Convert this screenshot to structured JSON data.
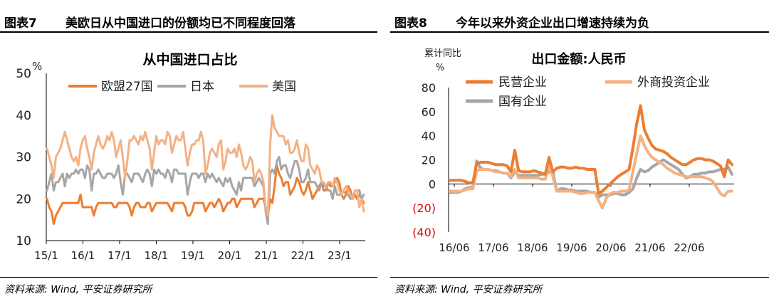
{
  "figures": [
    {
      "number": "图表7",
      "title": "美欧日从中国进口的份额均已不同程度回落",
      "source": "资料来源: Wind, 平安证券研究所"
    },
    {
      "number": "图表8",
      "title": "今年以来外资企业出口增速持续为负",
      "source": "资料来源: Wind, 平安证券研究所"
    }
  ],
  "chart_data": [
    {
      "type": "line",
      "title": "从中国进口占比",
      "ylabel": "%",
      "ylim": [
        10,
        50
      ],
      "yticks": [
        "10",
        "20",
        "30",
        "40",
        "50"
      ],
      "x_tick_labels": [
        "15/1",
        "16/1",
        "17/1",
        "18/1",
        "19/1",
        "20/1",
        "21/1",
        "22/1",
        "23/1"
      ],
      "grid": false,
      "legend": "top",
      "colors": {
        "欧盟27国": "#ED7D31",
        "日本": "#A6A6A6",
        "美国": "#F4B183"
      },
      "series": [
        {
          "name": "欧盟27国",
          "values": [
            20,
            18,
            17,
            14,
            16,
            17,
            18,
            19,
            19,
            19,
            19,
            19,
            19,
            19,
            19,
            21,
            18,
            18,
            18,
            18,
            18,
            16,
            18,
            19,
            19,
            19,
            19,
            19,
            19,
            19,
            18,
            18,
            19,
            19,
            19,
            19,
            19,
            18,
            16,
            18,
            19,
            19,
            18,
            18,
            18,
            19,
            19,
            17,
            18,
            19,
            19,
            19,
            19,
            19,
            19,
            18,
            17,
            19,
            19,
            19,
            19,
            19,
            18,
            16,
            16,
            17,
            19,
            19,
            19,
            19,
            19,
            17,
            18,
            19,
            19,
            18,
            19,
            20,
            19,
            17,
            18,
            19,
            19,
            20,
            20,
            18,
            19,
            20,
            20,
            20,
            20,
            20,
            20,
            18,
            19,
            20,
            20,
            20,
            18,
            16,
            20,
            19,
            23,
            28,
            26,
            25,
            23,
            24,
            24,
            21,
            22,
            23,
            25,
            24,
            22,
            21,
            22,
            24,
            22,
            20,
            21,
            22,
            23,
            24,
            22,
            22,
            24,
            23,
            23,
            24,
            25,
            24,
            21,
            20,
            21,
            23,
            22,
            20,
            21,
            20,
            21,
            20,
            19
          ]
        },
        {
          "name": "日本",
          "values": [
            22,
            24,
            26,
            22,
            24,
            24,
            25,
            26,
            23,
            26,
            25,
            26,
            26,
            27,
            26,
            27,
            27,
            25,
            28,
            27,
            22,
            26,
            26,
            27,
            26,
            25,
            25,
            26,
            26,
            26,
            25,
            26,
            28,
            24,
            21,
            26,
            26,
            25,
            24,
            26,
            26,
            26,
            25,
            24,
            26,
            27,
            26,
            23,
            27,
            26,
            27,
            26,
            26,
            25,
            27,
            26,
            24,
            27,
            27,
            26,
            26,
            26,
            26,
            21,
            24,
            26,
            26,
            26,
            25,
            26,
            26,
            24,
            26,
            25,
            26,
            25,
            24,
            25,
            24,
            23,
            25,
            24,
            25,
            23,
            22,
            21,
            24,
            22,
            25,
            25,
            25,
            25,
            25,
            23,
            24,
            25,
            24,
            23,
            17,
            14,
            26,
            27,
            26,
            29,
            30,
            27,
            28,
            28,
            26,
            25,
            27,
            29,
            29,
            27,
            24,
            24,
            25,
            27,
            24,
            24,
            24,
            23,
            22,
            24,
            23,
            23,
            22,
            22,
            20,
            23,
            21,
            21,
            21,
            22,
            21,
            21,
            20,
            20,
            22,
            22,
            22,
            20,
            21
          ]
        },
        {
          "name": "美国",
          "values": [
            32,
            30,
            28,
            25,
            30,
            31,
            32,
            34,
            36,
            34,
            32,
            30,
            29,
            30,
            28,
            32,
            34,
            35,
            32,
            30,
            27,
            31,
            33,
            35,
            33,
            32,
            33,
            35,
            34,
            36,
            34,
            30,
            32,
            34,
            30,
            25,
            29,
            34,
            34,
            35,
            34,
            33,
            35,
            34,
            36,
            34,
            32,
            27,
            31,
            35,
            33,
            34,
            34,
            33,
            36,
            35,
            31,
            33,
            35,
            34,
            34,
            36,
            32,
            28,
            31,
            33,
            33,
            34,
            34,
            36,
            34,
            26,
            28,
            31,
            32,
            31,
            30,
            33,
            34,
            27,
            29,
            32,
            31,
            31,
            32,
            30,
            33,
            31,
            28,
            27,
            28,
            30,
            29,
            24,
            26,
            27,
            26,
            24,
            18,
            16,
            33,
            40,
            37,
            36,
            35,
            35,
            35,
            33,
            34,
            31,
            31,
            32,
            34,
            31,
            29,
            29,
            33,
            32,
            28,
            27,
            26,
            28,
            27,
            24,
            24,
            23,
            24,
            24,
            23,
            25,
            24,
            22,
            21,
            22,
            23,
            22,
            21,
            20,
            22,
            22,
            18,
            20,
            17
          ]
        }
      ]
    },
    {
      "type": "line",
      "title": "出口金额:人民币",
      "ylabel": "累计同比，%",
      "ylim": [
        -40,
        80
      ],
      "yticks": [
        "(40)",
        "(20)",
        "0",
        "20",
        "40",
        "60",
        "80"
      ],
      "x_tick_labels": [
        "16/06",
        "17/06",
        "18/06",
        "19/06",
        "20/06",
        "21/06",
        "22/06"
      ],
      "grid": false,
      "legend": "top",
      "colors": {
        "民营企业": "#ED7D31",
        "外商投资企业": "#F4B183",
        "国有企业": "#A6A6A6",
        "negative_tick": "#E00000"
      },
      "series": [
        {
          "name": "民营企业",
          "values": [
            3,
            3,
            3,
            3,
            2,
            1,
            1,
            17,
            18,
            18,
            18,
            17,
            16,
            16,
            16,
            15,
            10,
            28,
            11,
            10,
            10,
            10,
            11,
            10,
            9,
            8,
            22,
            10,
            13,
            14,
            14,
            13,
            13,
            14,
            13,
            13,
            12,
            12,
            12,
            -8,
            -6,
            -3,
            0,
            3,
            6,
            8,
            10,
            12,
            30,
            50,
            65,
            45,
            38,
            32,
            29,
            28,
            27,
            25,
            22,
            20,
            18,
            16,
            16,
            18,
            20,
            21,
            21,
            20,
            20,
            19,
            17,
            15,
            6,
            20,
            16
          ]
        },
        {
          "name": "外商投资企业",
          "values": [
            -6,
            -6,
            -6,
            -6,
            -5,
            -4,
            -4,
            11,
            12,
            12,
            12,
            11,
            10,
            10,
            9,
            9,
            6,
            12,
            5,
            5,
            5,
            5,
            5,
            5,
            4,
            4,
            16,
            6,
            -6,
            -6,
            -6,
            -6,
            -6,
            -7,
            -8,
            -8,
            -7,
            -7,
            -7,
            -14,
            -20,
            -12,
            -8,
            -7,
            -7,
            -6,
            -6,
            -5,
            10,
            25,
            40,
            32,
            26,
            22,
            20,
            18,
            16,
            13,
            11,
            9,
            8,
            7,
            6,
            6,
            6,
            6,
            6,
            5,
            4,
            2,
            -3,
            -8,
            -10,
            -6,
            -6
          ]
        },
        {
          "name": "国有企业",
          "values": [
            -7,
            -7,
            -7,
            -6,
            -4,
            -3,
            -3,
            19,
            13,
            12,
            12,
            11,
            11,
            10,
            9,
            9,
            5,
            10,
            7,
            7,
            7,
            7,
            7,
            7,
            8,
            8,
            10,
            10,
            -6,
            -4,
            -4,
            -5,
            -5,
            -6,
            -6,
            -6,
            -6,
            -7,
            -7,
            -11,
            -9,
            -9,
            -9,
            -8,
            -8,
            -9,
            -9,
            -7,
            -4,
            5,
            12,
            10,
            11,
            14,
            16,
            18,
            20,
            18,
            16,
            14,
            12,
            8,
            5,
            6,
            8,
            8,
            9,
            9,
            10,
            10,
            11,
            12,
            12,
            14,
            8
          ]
        }
      ]
    }
  ]
}
